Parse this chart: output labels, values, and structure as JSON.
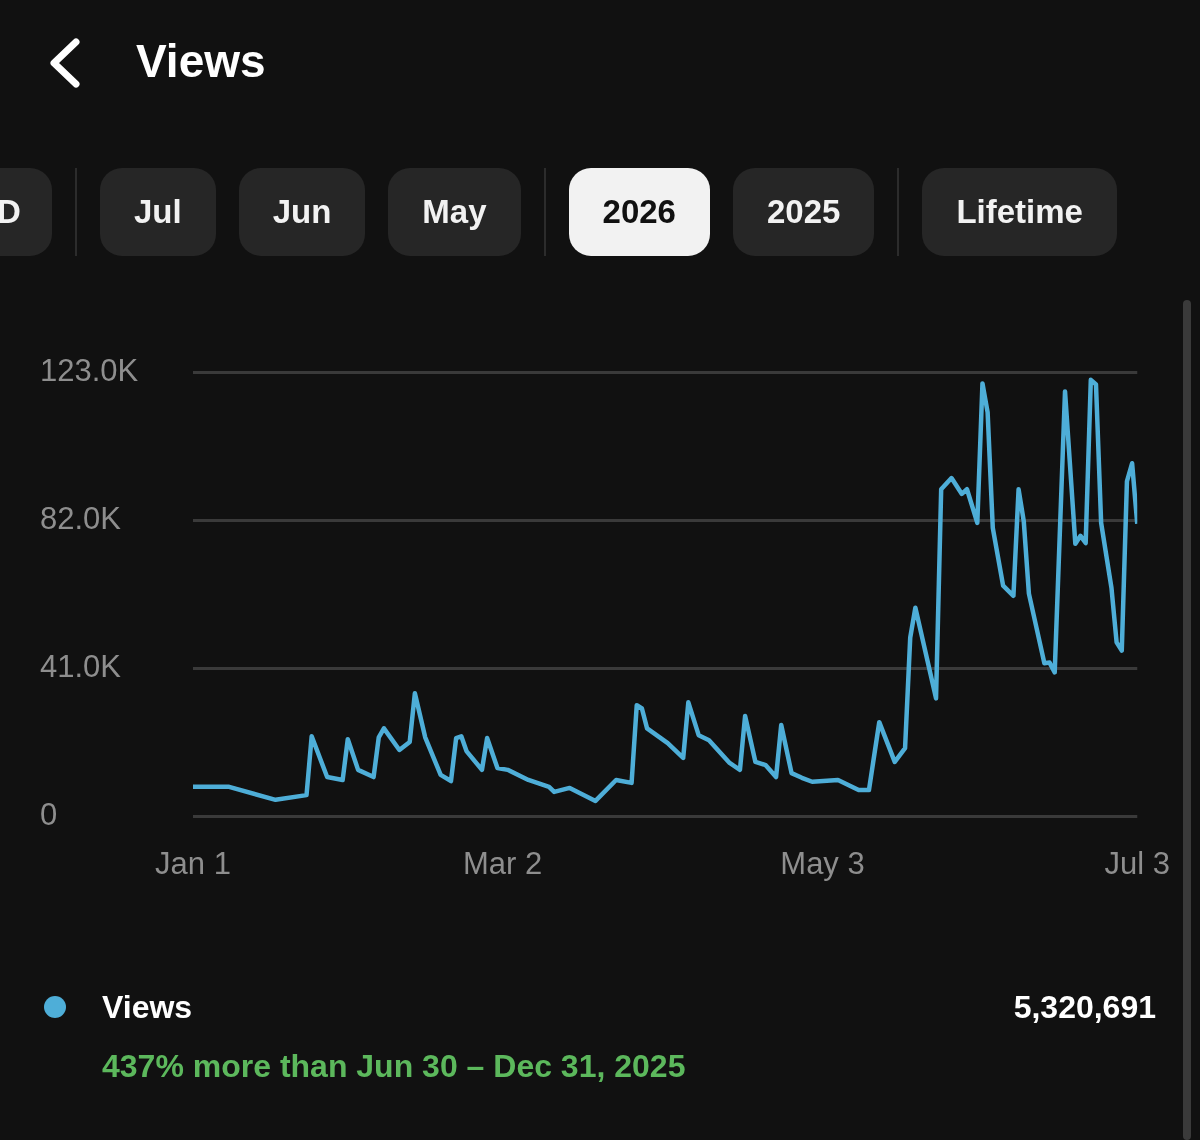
{
  "chart_data": {
    "type": "line",
    "title": "Views",
    "annotations": [
      "D",
      "Jul",
      "Jun",
      "May",
      "2026",
      "2025",
      "Lifetime",
      "5,320,691",
      "437% more than Jun 30 – Dec 31, 2025"
    ],
    "x": [
      "2026-01-01",
      "2026-01-08",
      "2026-01-17",
      "2026-01-23",
      "2026-01-24",
      "2026-01-27",
      "2026-01-30",
      "2026-01-31",
      "2026-02-02",
      "2026-02-05",
      "2026-02-06",
      "2026-02-07",
      "2026-02-10",
      "2026-02-12",
      "2026-02-13",
      "2026-02-15",
      "2026-02-18",
      "2026-02-20",
      "2026-02-21",
      "2026-02-22",
      "2026-02-23",
      "2026-02-26",
      "2026-02-27",
      "2026-03-01",
      "2026-03-03",
      "2026-03-07",
      "2026-03-11",
      "2026-03-12",
      "2026-03-15",
      "2026-03-20",
      "2026-03-24",
      "2026-03-27",
      "2026-03-28",
      "2026-03-29",
      "2026-03-30",
      "2026-04-03",
      "2026-04-06",
      "2026-04-07",
      "2026-04-09",
      "2026-04-11",
      "2026-04-15",
      "2026-04-17",
      "2026-04-18",
      "2026-04-20",
      "2026-04-22",
      "2026-04-24",
      "2026-04-25",
      "2026-04-27",
      "2026-04-29",
      "2026-05-01",
      "2026-05-06",
      "2026-05-10",
      "2026-05-12",
      "2026-05-14",
      "2026-05-17",
      "2026-05-19",
      "2026-05-20",
      "2026-05-21",
      "2026-05-25",
      "2026-05-26",
      "2026-05-28",
      "2026-05-30",
      "2026-05-31",
      "2026-06-02",
      "2026-06-03",
      "2026-06-04",
      "2026-06-05",
      "2026-06-07",
      "2026-06-09",
      "2026-06-10",
      "2026-06-11",
      "2026-06-12",
      "2026-06-15",
      "2026-06-16",
      "2026-06-17",
      "2026-06-19",
      "2026-06-21",
      "2026-06-22",
      "2026-06-23",
      "2026-06-24",
      "2026-06-25",
      "2026-06-26",
      "2026-06-28",
      "2026-06-29",
      "2026-06-30",
      "2026-07-01",
      "2026-07-02",
      "2026-07-03"
    ],
    "series": [
      {
        "name": "Views",
        "color": "#4eaed8",
        "values": [
          8300,
          8300,
          4700,
          6000,
          22300,
          11000,
          10200,
          21500,
          13000,
          11000,
          22000,
          24500,
          18500,
          20700,
          34200,
          22000,
          11600,
          9900,
          21800,
          22300,
          18200,
          13000,
          21800,
          13500,
          13000,
          10200,
          8300,
          6900,
          8000,
          4400,
          10200,
          9400,
          30900,
          30000,
          24500,
          20400,
          16300,
          31700,
          22600,
          21200,
          14900,
          13000,
          27900,
          15200,
          14300,
          11000,
          25400,
          12100,
          10800,
          9700,
          10200,
          7400,
          7400,
          26200,
          15200,
          19000,
          49600,
          57900,
          32800,
          90700,
          93800,
          89400,
          90700,
          81400,
          120000,
          112000,
          80000,
          64000,
          61200,
          90700,
          81900,
          61800,
          42500,
          42700,
          40000,
          117800,
          75600,
          77800,
          75800,
          121000,
          119700,
          81400,
          63400,
          48300,
          46000,
          92900,
          97900,
          81100
        ]
      }
    ],
    "xlim": [
      "2026-01-01",
      "2026-07-03"
    ],
    "xticks": [
      {
        "value": "2026-01-01",
        "label": "Jan 1"
      },
      {
        "value": "2026-03-02",
        "label": "Mar 2"
      },
      {
        "value": "2026-05-03",
        "label": "May 3"
      },
      {
        "value": "2026-07-03",
        "label": "Jul 3"
      }
    ],
    "ylim": [
      0,
      123000
    ],
    "yticks": [
      {
        "value": 0,
        "label": "0"
      },
      {
        "value": 41000,
        "label": "41.0K"
      },
      {
        "value": 82000,
        "label": "82.0K"
      },
      {
        "value": 123000,
        "label": "123.0K"
      }
    ],
    "grid": "y",
    "legend": "bottom",
    "marker": "none"
  }
}
